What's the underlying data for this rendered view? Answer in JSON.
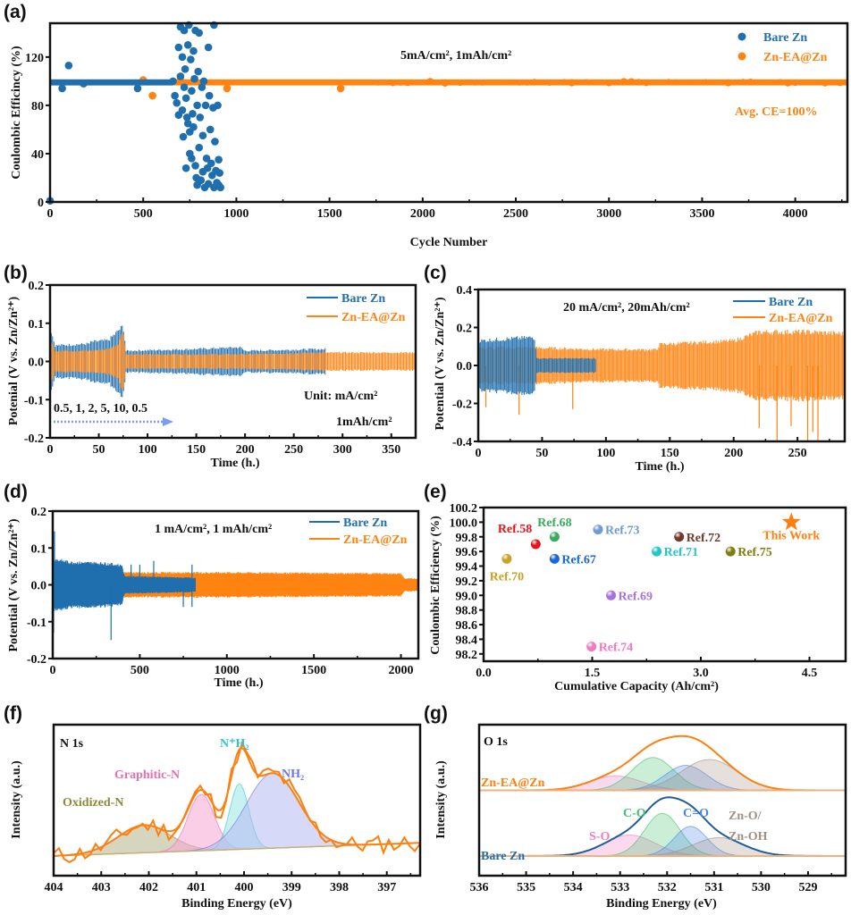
{
  "colors": {
    "bare_zn": "#1f6fae",
    "zn_ea": "#ff8310",
    "axis": "#111111"
  },
  "chart_data": [
    {
      "id": "a",
      "panel_label": "(a)",
      "type": "scatter",
      "title": "",
      "annotation": "5mA/cm², 1mAh/cm²",
      "annotation2": "Avg. CE=100%",
      "xlabel": "Cycle Number",
      "ylabel": "Coulombic Efficincy (%)",
      "xlim": [
        0,
        4280
      ],
      "ylim": [
        0,
        148
      ],
      "xticks": [
        0,
        500,
        1000,
        1500,
        2000,
        2500,
        3000,
        3500,
        4000
      ],
      "yticks": [
        0,
        40,
        80,
        120
      ],
      "legend": [
        "Bare Zn",
        "Zn-EA@Zn"
      ],
      "legend_position": "top-right",
      "series": [
        {
          "name": "Bare Zn",
          "color_key": "bare_zn",
          "band": {
            "x": [
              0,
              660
            ],
            "y": 99
          },
          "points": [
            [
              0,
              1
            ],
            [
              100,
              113
            ],
            [
              65,
              94
            ],
            [
              470,
              94
            ],
            [
              180,
              98
            ],
            [
              660,
              100
            ],
            [
              670,
              88
            ],
            [
              680,
              82
            ],
            [
              690,
              72
            ],
            [
              690,
              128
            ],
            [
              700,
              145
            ],
            [
              700,
              104
            ],
            [
              710,
              120
            ],
            [
              710,
              76
            ],
            [
              715,
              54
            ],
            [
              720,
              142
            ],
            [
              720,
              95
            ],
            [
              725,
              110
            ],
            [
              730,
              86
            ],
            [
              730,
              28
            ],
            [
              735,
              70
            ],
            [
              740,
              65
            ],
            [
              740,
              130
            ],
            [
              745,
              148
            ],
            [
              750,
              58
            ],
            [
              750,
              40
            ],
            [
              755,
              118
            ],
            [
              760,
              92
            ],
            [
              760,
              36
            ],
            [
              765,
              73
            ],
            [
              770,
              62
            ],
            [
              770,
              125
            ],
            [
              775,
              102
            ],
            [
              780,
              142
            ],
            [
              780,
              30
            ],
            [
              785,
              20
            ],
            [
              790,
              80
            ],
            [
              790,
              14
            ],
            [
              795,
              108
            ],
            [
              800,
              140
            ],
            [
              800,
              45
            ],
            [
              805,
              70
            ],
            [
              810,
              18
            ],
            [
              815,
              95
            ],
            [
              820,
              55
            ],
            [
              820,
              25
            ],
            [
              825,
              100
            ],
            [
              830,
              12
            ],
            [
              835,
              80
            ],
            [
              840,
              36
            ],
            [
              845,
              28
            ],
            [
              850,
              128
            ],
            [
              850,
              15
            ],
            [
              855,
              88
            ],
            [
              860,
              60
            ],
            [
              865,
              32
            ],
            [
              870,
              22
            ],
            [
              875,
              78
            ],
            [
              880,
              147
            ],
            [
              880,
              12
            ],
            [
              885,
              50
            ],
            [
              890,
              26
            ],
            [
              895,
              16
            ],
            [
              900,
              80
            ],
            [
              905,
              14
            ],
            [
              905,
              35
            ],
            [
              910,
              24
            ],
            [
              915,
              12
            ]
          ]
        },
        {
          "name": "Zn-EA@Zn",
          "color_key": "zn_ea",
          "band": {
            "x": [
              0,
              4280
            ],
            "y": 99
          },
          "points": [
            [
              550,
              88
            ],
            [
              950,
              94
            ],
            [
              1560,
              94
            ],
            [
              500,
              101
            ],
            [
              700,
              101
            ]
          ]
        }
      ]
    },
    {
      "id": "b",
      "panel_label": "(b)",
      "type": "line",
      "xlabel": "Time (h.)",
      "ylabel": "Potenial (V vs. Zn/Zn²⁺)",
      "xlim": [
        0,
        375
      ],
      "ylim": [
        -0.2,
        0.2
      ],
      "xticks": [
        0,
        50,
        100,
        150,
        200,
        250,
        300,
        350
      ],
      "yticks": [
        -0.2,
        -0.1,
        0.0,
        0.1,
        0.2
      ],
      "legend": [
        "Bare Zn",
        "Zn-EA@Zn"
      ],
      "legend_position": "top-right",
      "annotation_rates": "0.5, 1, 2, 5, 10, 0.5",
      "annotation_unit": "Unit:  mA/cm²",
      "annotation_capacity": "1mAh/cm²",
      "series": [
        {
          "name": "Bare Zn",
          "color_key": "bare_zn",
          "end_x": 283,
          "envelope": [
            [
              0,
              0.1
            ],
            [
              5,
              0.045
            ],
            [
              40,
              0.05
            ],
            [
              42,
              0.055
            ],
            [
              60,
              0.06
            ],
            [
              75,
              0.1
            ],
            [
              78,
              0.03
            ],
            [
              150,
              0.035
            ],
            [
              195,
              0.04
            ],
            [
              200,
              0.03
            ],
            [
              283,
              0.035
            ]
          ]
        },
        {
          "name": "Zn-EA@Zn",
          "color_key": "zn_ea",
          "end_x": 375,
          "envelope": [
            [
              0,
              0.065
            ],
            [
              5,
              0.03
            ],
            [
              40,
              0.03
            ],
            [
              60,
              0.035
            ],
            [
              70,
              0.05
            ],
            [
              75,
              0.09
            ],
            [
              78,
              0.02
            ],
            [
              200,
              0.02
            ],
            [
              283,
              0.025
            ],
            [
              375,
              0.025
            ]
          ]
        }
      ]
    },
    {
      "id": "c",
      "panel_label": "(c)",
      "type": "line",
      "xlabel": "Time (h.)",
      "ylabel": "Potential (V vs. Zn/Zn²⁺)",
      "xlim": [
        0,
        287
      ],
      "ylim": [
        -0.4,
        0.4
      ],
      "xticks": [
        0,
        50,
        100,
        150,
        200,
        250
      ],
      "yticks": [
        -0.4,
        -0.2,
        0.0,
        0.2,
        0.4
      ],
      "legend": [
        "Bare Zn",
        "Zn-EA@Zn"
      ],
      "legend_position": "top-right",
      "annotation": "20 mA/cm², 20mAh/cm²",
      "series": [
        {
          "name": "Bare Zn",
          "color_key": "bare_zn",
          "end_x": 92,
          "envelope": [
            [
              0,
              0.14
            ],
            [
              20,
              0.15
            ],
            [
              44,
              0.16
            ],
            [
              46,
              0.04
            ],
            [
              92,
              0.04
            ]
          ]
        },
        {
          "name": "Zn-EA@Zn",
          "color_key": "zn_ea",
          "end_x": 287,
          "envelope": [
            [
              0,
              0.1
            ],
            [
              45,
              0.1
            ],
            [
              100,
              0.09
            ],
            [
              140,
              0.09
            ],
            [
              142,
              0.12
            ],
            [
              200,
              0.14
            ],
            [
              220,
              0.19
            ],
            [
              260,
              0.19
            ],
            [
              287,
              0.18
            ]
          ],
          "spikes": [
            [
              6,
              -0.22
            ],
            [
              32,
              -0.26
            ],
            [
              74,
              -0.23
            ],
            [
              220,
              -0.33
            ],
            [
              234,
              -0.4
            ],
            [
              245,
              -0.32
            ],
            [
              258,
              -0.4
            ],
            [
              262,
              -0.35
            ],
            [
              266,
              -0.4
            ]
          ]
        }
      ]
    },
    {
      "id": "d",
      "panel_label": "(d)",
      "type": "line",
      "xlabel": "Time (h.)",
      "ylabel": "Potential (V vs. Zn/Zn²⁺)",
      "xlim": [
        0,
        2100
      ],
      "ylim": [
        -0.2,
        0.2
      ],
      "xticks": [
        0,
        500,
        1000,
        1500,
        2000
      ],
      "yticks": [
        -0.2,
        -0.1,
        0.0,
        0.1,
        0.2
      ],
      "legend": [
        "Bare Zn",
        "Zn-EA@Zn"
      ],
      "legend_position": "top-right",
      "annotation": "1 mA/cm², 1 mAh/cm²",
      "series": [
        {
          "name": "Bare Zn",
          "color_key": "bare_zn",
          "end_x": 820,
          "envelope": [
            [
              0,
              0.075
            ],
            [
              100,
              0.065
            ],
            [
              300,
              0.062
            ],
            [
              400,
              0.055
            ],
            [
              410,
              0.025
            ],
            [
              820,
              0.02
            ]
          ],
          "spikes": [
            [
              10,
              0.145
            ],
            [
              5,
              -0.13
            ],
            [
              335,
              -0.15
            ],
            [
              450,
              0.055
            ],
            [
              500,
              0.055
            ],
            [
              580,
              0.065
            ],
            [
              800,
              0.055
            ],
            [
              800,
              -0.06
            ],
            [
              750,
              -0.06
            ]
          ]
        },
        {
          "name": "Zn-EA@Zn",
          "color_key": "zn_ea",
          "end_x": 2100,
          "envelope": [
            [
              400,
              0.035
            ],
            [
              1000,
              0.035
            ],
            [
              2000,
              0.032
            ],
            [
              2020,
              0.018
            ],
            [
              2100,
              0.018
            ]
          ]
        }
      ]
    },
    {
      "id": "e",
      "panel_label": "(e)",
      "type": "scatter",
      "xlabel": "Cumulative Capacity (Ah/cm²)",
      "ylabel": "Coulombic Efficiency (%)",
      "xlim": [
        0,
        5.0
      ],
      "ylim": [
        98.1,
        100.2
      ],
      "xticks": [
        0.0,
        1.5,
        3.0,
        4.5
      ],
      "yticks": [
        98.2,
        98.4,
        98.6,
        98.8,
        99.0,
        99.2,
        99.4,
        99.6,
        99.8,
        100.0,
        100.2
      ],
      "points": [
        {
          "label": "Ref.58",
          "x": 0.72,
          "y": 99.7,
          "color": "#e8141b",
          "label_pos": "above-left"
        },
        {
          "label": "Ref.70",
          "x": 0.32,
          "y": 99.5,
          "color": "#c9a227",
          "label_pos": "below"
        },
        {
          "label": "Ref.68",
          "x": 0.98,
          "y": 99.8,
          "color": "#3aaa5c",
          "label_pos": "above"
        },
        {
          "label": "Ref.67",
          "x": 0.98,
          "y": 99.5,
          "color": "#1a66d6",
          "label_pos": "right"
        },
        {
          "label": "Ref.73",
          "x": 1.58,
          "y": 99.9,
          "color": "#6f9bd1",
          "label_pos": "right"
        },
        {
          "label": "Ref.69",
          "x": 1.76,
          "y": 99.0,
          "color": "#a872dd",
          "label_pos": "right"
        },
        {
          "label": "Ref.74",
          "x": 1.49,
          "y": 98.3,
          "color": "#f27ac0",
          "label_pos": "right"
        },
        {
          "label": "Ref.71",
          "x": 2.39,
          "y": 99.6,
          "color": "#22c6c6",
          "label_pos": "right"
        },
        {
          "label": "Ref.72",
          "x": 2.7,
          "y": 99.8,
          "color": "#6e3b2a",
          "label_pos": "right"
        },
        {
          "label": "Ref.75",
          "x": 3.41,
          "y": 99.6,
          "color": "#7d7d12",
          "label_pos": "right"
        },
        {
          "label": "This Work",
          "x": 4.25,
          "y": 100.0,
          "color": "#ff7f0e",
          "marker": "star",
          "label_pos": "below"
        }
      ]
    },
    {
      "id": "f",
      "panel_label": "(f)",
      "type": "line",
      "title": "N 1s",
      "xlabel": "Binding Energy (eV)",
      "ylabel": "Intensity (a.u.)",
      "xlim": [
        404,
        396.3
      ],
      "xticks": [
        404,
        403,
        402,
        401,
        400,
        399,
        398,
        397
      ],
      "peaks": [
        {
          "label": "Oxidized-N",
          "center": 402.1,
          "height": 0.21,
          "width": 0.55,
          "color": "#8a8a3a",
          "fill": "#b5b58a"
        },
        {
          "label": "Graphitic-N",
          "center": 400.9,
          "height": 0.43,
          "width": 0.28,
          "color": "#e86fb2",
          "fill": "#f5a6d2"
        },
        {
          "label": "N⁺H₂",
          "center": 400.1,
          "height": 0.5,
          "width": 0.2,
          "color": "#2ec8c8",
          "fill": "#9be5e5"
        },
        {
          "label": "NH₂",
          "center": 399.4,
          "height": 0.57,
          "width": 0.55,
          "color": "#6f77e0",
          "fill": "#b5baf0"
        }
      ],
      "baseline": {
        "start": 0.0,
        "end": 0.1
      },
      "series_color": "#ff7f0e"
    },
    {
      "id": "g",
      "panel_label": "(g)",
      "type": "line",
      "title": "O 1s",
      "xlabel": "Binding Energy (eV)",
      "ylabel": "Intensity (a.u.)",
      "xlim": [
        536,
        528.2
      ],
      "xticks": [
        536,
        535,
        534,
        533,
        532,
        531,
        530,
        529
      ],
      "series": [
        {
          "name": "Zn-EA@Zn",
          "color": "#ff7f0e",
          "peaks": [
            {
              "center": 533.1,
              "height": 0.22,
              "width": 0.55
            },
            {
              "center": 532.3,
              "height": 0.5,
              "width": 0.45
            },
            {
              "center": 531.6,
              "height": 0.38,
              "width": 0.45
            },
            {
              "center": 531.1,
              "height": 0.47,
              "width": 0.6
            }
          ]
        },
        {
          "name": "Bare Zn",
          "color": "#1f5f98",
          "peaks": [
            {
              "center": 532.8,
              "height": 0.32,
              "width": 0.55
            },
            {
              "center": 532.1,
              "height": 0.65,
              "width": 0.38
            },
            {
              "center": 531.5,
              "height": 0.45,
              "width": 0.35
            },
            {
              "center": 530.9,
              "height": 0.28,
              "width": 0.55
            }
          ]
        }
      ],
      "component_labels": [
        "S-O",
        "C-O",
        "C=O",
        "Zn-O/",
        "Zn-OH"
      ],
      "component_colors": [
        "#f27ac0",
        "#3fc26a",
        "#4a86e8",
        "#a09080"
      ]
    }
  ]
}
